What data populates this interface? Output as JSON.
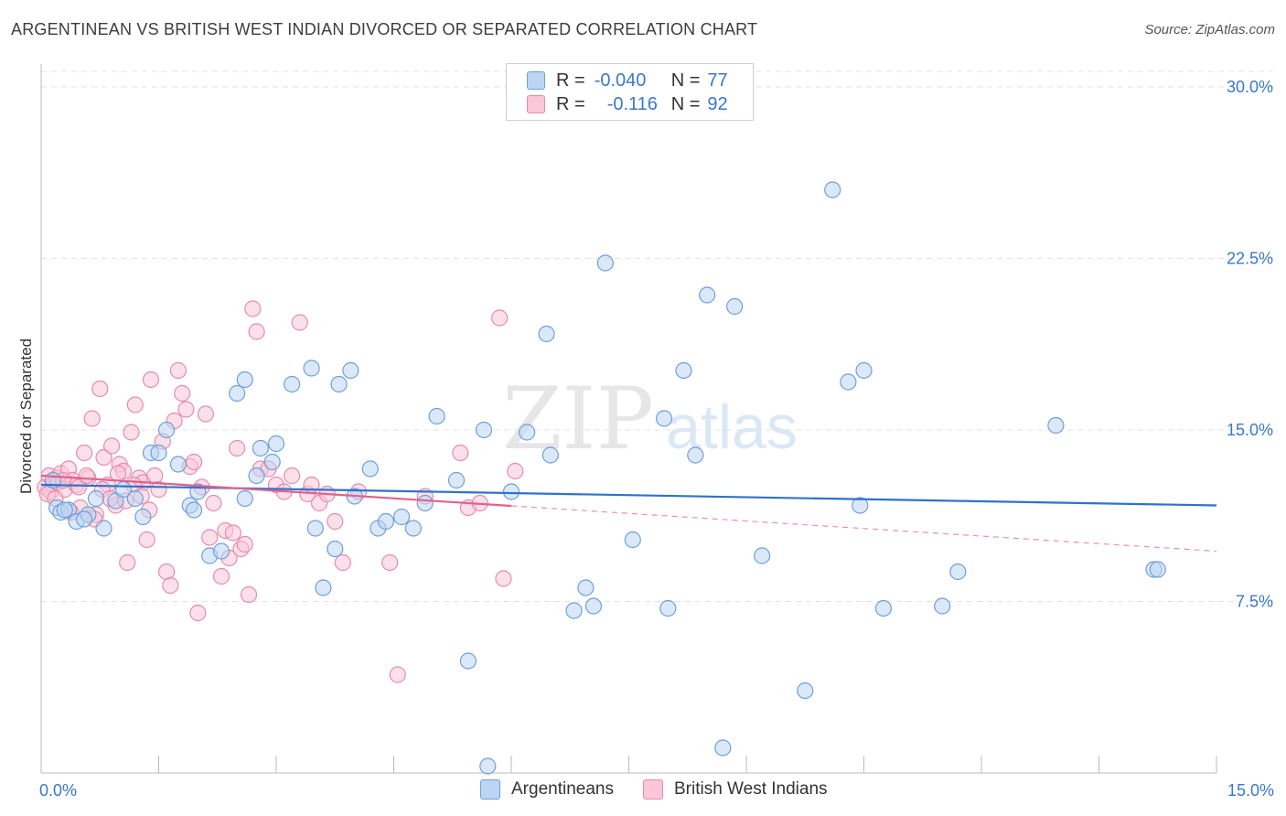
{
  "header": {
    "title": "ARGENTINEAN VS BRITISH WEST INDIAN DIVORCED OR SEPARATED CORRELATION CHART",
    "source": "Source: ZipAtlas.com"
  },
  "legend": {
    "r_label": "R =",
    "n_label": "N =",
    "series1": {
      "r": "-0.040",
      "n": "77"
    },
    "series2": {
      "r": "-0.116",
      "n": "92"
    }
  },
  "bottom_legend": {
    "series1": "Argentineans",
    "series2": "British West Indians"
  },
  "watermark": {
    "zip": "ZIP",
    "atlas": "atlas"
  },
  "colors": {
    "blue_fill": "#bcd5f3",
    "blue_stroke": "#6e9fdc",
    "blue_line": "#2f72cc",
    "pink_fill": "#f9c7d7",
    "pink_stroke": "#e68bab",
    "pink_line": "#e0628e",
    "grid": "#e3e3e3",
    "axis_label": "#3a78c9"
  },
  "chart_data": {
    "type": "scatter",
    "title": "ARGENTINEAN VS BRITISH WEST INDIAN DIVORCED OR SEPARATED CORRELATION CHART",
    "xlabel": "",
    "ylabel": "Divorced or Separated",
    "xlim": [
      0,
      15
    ],
    "ylim": [
      0,
      31
    ],
    "x_tick_labels": [
      "0.0%",
      "15.0%"
    ],
    "y_ticks": [
      7.5,
      15.0,
      22.5,
      30.0
    ],
    "y_tick_labels": [
      "7.5%",
      "15.0%",
      "22.5%",
      "30.0%"
    ],
    "grid": true,
    "series": [
      {
        "name": "Argentineans",
        "r": -0.04,
        "n": 77,
        "trend": {
          "x0": 0.0,
          "y0": 12.6,
          "x1": 15.0,
          "y1": 11.7,
          "dashed_from": null
        },
        "points": [
          [
            0.2,
            11.6
          ],
          [
            0.25,
            11.4
          ],
          [
            0.35,
            11.5
          ],
          [
            0.45,
            11.0
          ],
          [
            0.6,
            11.3
          ],
          [
            0.7,
            12.0
          ],
          [
            0.8,
            10.7
          ],
          [
            0.95,
            11.9
          ],
          [
            1.05,
            12.4
          ],
          [
            1.3,
            11.2
          ],
          [
            1.4,
            14.0
          ],
          [
            1.6,
            15.0
          ],
          [
            1.75,
            13.5
          ],
          [
            1.9,
            11.7
          ],
          [
            1.95,
            11.5
          ],
          [
            2.15,
            9.5
          ],
          [
            2.3,
            9.7
          ],
          [
            2.5,
            16.6
          ],
          [
            2.6,
            17.2
          ],
          [
            2.8,
            14.2
          ],
          [
            2.95,
            13.6
          ],
          [
            3.0,
            14.4
          ],
          [
            3.2,
            17.0
          ],
          [
            3.45,
            17.7
          ],
          [
            3.5,
            10.7
          ],
          [
            3.6,
            8.1
          ],
          [
            3.75,
            9.8
          ],
          [
            3.8,
            17.0
          ],
          [
            3.95,
            17.6
          ],
          [
            4.2,
            13.3
          ],
          [
            4.3,
            10.7
          ],
          [
            4.4,
            11.0
          ],
          [
            4.6,
            11.2
          ],
          [
            4.75,
            10.7
          ],
          [
            4.9,
            11.8
          ],
          [
            5.05,
            15.6
          ],
          [
            5.3,
            12.8
          ],
          [
            5.45,
            4.9
          ],
          [
            5.65,
            15.0
          ],
          [
            5.7,
            0.3
          ],
          [
            6.2,
            14.9
          ],
          [
            6.45,
            19.2
          ],
          [
            6.5,
            13.9
          ],
          [
            6.8,
            7.1
          ],
          [
            6.95,
            8.1
          ],
          [
            7.05,
            7.3
          ],
          [
            7.2,
            22.3
          ],
          [
            7.55,
            10.2
          ],
          [
            7.95,
            15.5
          ],
          [
            8.0,
            7.2
          ],
          [
            8.2,
            17.6
          ],
          [
            8.35,
            13.9
          ],
          [
            8.5,
            20.9
          ],
          [
            8.7,
            1.1
          ],
          [
            8.85,
            20.4
          ],
          [
            9.2,
            9.5
          ],
          [
            9.75,
            3.6
          ],
          [
            10.1,
            25.5
          ],
          [
            10.3,
            17.1
          ],
          [
            10.45,
            11.7
          ],
          [
            10.5,
            17.6
          ],
          [
            10.75,
            7.2
          ],
          [
            11.5,
            7.3
          ],
          [
            11.7,
            8.8
          ],
          [
            12.95,
            15.2
          ],
          [
            14.2,
            8.9
          ],
          [
            0.15,
            12.8
          ],
          [
            0.55,
            11.1
          ],
          [
            1.2,
            12.0
          ],
          [
            2.0,
            12.3
          ],
          [
            2.6,
            12.0
          ],
          [
            4.0,
            12.1
          ],
          [
            6.0,
            12.3
          ],
          [
            1.5,
            14.0
          ],
          [
            0.3,
            11.5
          ],
          [
            2.75,
            13.0
          ],
          [
            14.25,
            8.9
          ]
        ]
      },
      {
        "name": "British West Indians",
        "r": -0.116,
        "n": 92,
        "trend": {
          "x0": 0.0,
          "y0": 13.0,
          "x1": 15.0,
          "y1": 9.7,
          "dashed_from": 6.0
        },
        "points": [
          [
            0.05,
            12.5
          ],
          [
            0.1,
            13.0
          ],
          [
            0.12,
            12.3
          ],
          [
            0.15,
            12.6
          ],
          [
            0.2,
            12.9
          ],
          [
            0.22,
            12.7
          ],
          [
            0.25,
            13.1
          ],
          [
            0.3,
            12.4
          ],
          [
            0.35,
            13.3
          ],
          [
            0.4,
            12.8
          ],
          [
            0.45,
            12.6
          ],
          [
            0.5,
            11.6
          ],
          [
            0.55,
            14.0
          ],
          [
            0.6,
            12.9
          ],
          [
            0.65,
            15.5
          ],
          [
            0.7,
            11.3
          ],
          [
            0.75,
            16.8
          ],
          [
            0.8,
            13.8
          ],
          [
            0.85,
            12.6
          ],
          [
            0.9,
            14.3
          ],
          [
            0.95,
            11.7
          ],
          [
            1.0,
            13.5
          ],
          [
            1.05,
            13.2
          ],
          [
            1.1,
            9.2
          ],
          [
            1.15,
            14.9
          ],
          [
            1.2,
            16.1
          ],
          [
            1.25,
            12.9
          ],
          [
            1.3,
            12.7
          ],
          [
            1.35,
            10.2
          ],
          [
            1.4,
            17.2
          ],
          [
            1.45,
            13.0
          ],
          [
            1.5,
            12.4
          ],
          [
            1.55,
            14.5
          ],
          [
            1.6,
            8.8
          ],
          [
            1.65,
            8.2
          ],
          [
            1.7,
            15.4
          ],
          [
            1.75,
            17.6
          ],
          [
            1.8,
            16.6
          ],
          [
            1.85,
            15.9
          ],
          [
            1.9,
            13.4
          ],
          [
            1.95,
            13.6
          ],
          [
            2.0,
            7.0
          ],
          [
            2.05,
            12.5
          ],
          [
            2.1,
            15.7
          ],
          [
            2.15,
            10.3
          ],
          [
            2.2,
            11.8
          ],
          [
            2.3,
            8.6
          ],
          [
            2.35,
            10.6
          ],
          [
            2.4,
            9.4
          ],
          [
            2.45,
            10.5
          ],
          [
            2.5,
            14.2
          ],
          [
            2.55,
            9.8
          ],
          [
            2.6,
            10.0
          ],
          [
            2.65,
            7.8
          ],
          [
            2.7,
            20.3
          ],
          [
            2.75,
            19.3
          ],
          [
            2.8,
            13.3
          ],
          [
            2.9,
            13.3
          ],
          [
            3.0,
            12.6
          ],
          [
            3.1,
            12.3
          ],
          [
            3.2,
            13.0
          ],
          [
            3.3,
            19.7
          ],
          [
            3.4,
            12.2
          ],
          [
            3.45,
            12.6
          ],
          [
            3.55,
            11.8
          ],
          [
            3.65,
            12.2
          ],
          [
            3.75,
            11.0
          ],
          [
            3.85,
            9.2
          ],
          [
            4.05,
            12.3
          ],
          [
            4.45,
            9.2
          ],
          [
            4.55,
            4.3
          ],
          [
            4.9,
            12.1
          ],
          [
            5.35,
            14.0
          ],
          [
            5.45,
            11.6
          ],
          [
            5.6,
            11.8
          ],
          [
            5.85,
            19.9
          ],
          [
            5.9,
            8.5
          ],
          [
            6.05,
            13.2
          ],
          [
            0.08,
            12.2
          ],
          [
            0.18,
            12.0
          ],
          [
            0.28,
            12.8
          ],
          [
            0.38,
            11.4
          ],
          [
            0.48,
            12.5
          ],
          [
            0.58,
            13.0
          ],
          [
            0.68,
            11.1
          ],
          [
            0.78,
            12.4
          ],
          [
            0.88,
            12.0
          ],
          [
            0.98,
            13.1
          ],
          [
            1.08,
            11.9
          ],
          [
            1.18,
            12.6
          ],
          [
            1.28,
            12.1
          ],
          [
            1.38,
            11.5
          ]
        ]
      }
    ]
  }
}
